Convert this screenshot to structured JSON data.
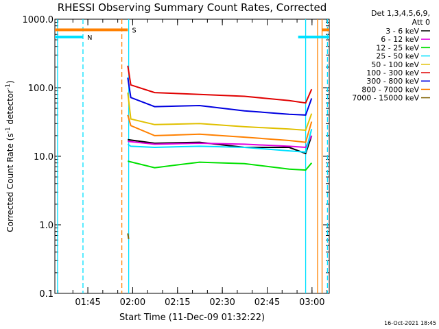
{
  "chart_data": {
    "type": "line",
    "title": "RHESSI Observing Summary Count Rates, Corrected",
    "xlabel": "Start Time (11-Dec-09 01:32:22)",
    "ylabel_main": "Corrected Count Rate (s",
    "ylabel_sup1": "-1",
    "ylabel_mid": " detector",
    "ylabel_sup2": "-1",
    "ylabel_end": ")",
    "yscale": "log",
    "ylim": [
      0.1,
      1000
    ],
    "ytick_values": [
      0.1,
      1,
      10,
      100,
      1000
    ],
    "ytick_labels": [
      "0.1",
      "1.0",
      "10.0",
      "100.0",
      "1000.0"
    ],
    "xlim_minutes": [
      1.6,
      93.4
    ],
    "xtick_minutes": [
      12.63,
      27.63,
      42.63,
      57.63,
      72.63,
      87.63
    ],
    "xtick_labels": [
      "01:45",
      "02:00",
      "02:15",
      "02:30",
      "02:45",
      "03:00"
    ],
    "legend": {
      "header1": "Det 1,3,4,5,6,9,",
      "header2": "Att 0",
      "location": "right of plot"
    },
    "series": [
      {
        "name": "3 - 6 keV",
        "color": "#000000",
        "x": [
          26.0,
          35,
          50,
          65,
          80,
          85.5,
          87.5
        ],
        "y": [
          17.5,
          15.5,
          16,
          13.5,
          13.5,
          11,
          20
        ]
      },
      {
        "name": "6 - 12 keV",
        "color": "#e000e0",
        "x": [
          26.0,
          35,
          50,
          65,
          80,
          85.5,
          87.5
        ],
        "y": [
          16.5,
          15,
          15.5,
          15,
          14,
          13.5,
          20
        ]
      },
      {
        "name": "12 - 25 keV",
        "color": "#00e000",
        "x": [
          26.0,
          35,
          50,
          65,
          80,
          85.5,
          87.5
        ],
        "y": [
          8.5,
          6.8,
          8.2,
          7.8,
          6.5,
          6.3,
          8
        ]
      },
      {
        "name": "25 - 50 keV",
        "color": "#00e0ff",
        "x": [
          26.0,
          27,
          35,
          50,
          65,
          80,
          85.5,
          87.5
        ],
        "y": [
          15,
          14,
          13.5,
          14,
          13.5,
          12,
          11.5,
          25
        ]
      },
      {
        "name": "50 - 100 keV",
        "color": "#e0c000",
        "x": [
          26.0,
          27,
          35,
          50,
          65,
          80,
          85.5,
          87.5
        ],
        "y": [
          85,
          35,
          29,
          30,
          27,
          25,
          24,
          42
        ]
      },
      {
        "name": "100 - 300 keV",
        "color": "#e00000",
        "x": [
          26.0,
          27,
          35,
          50,
          65,
          80,
          85.5,
          87.5
        ],
        "y": [
          210,
          110,
          85,
          80,
          75,
          65,
          60,
          95
        ]
      },
      {
        "name": "300 - 800 keV",
        "color": "#0000e0",
        "x": [
          26.0,
          27,
          35,
          50,
          65,
          80,
          85.5,
          87.5
        ],
        "y": [
          140,
          72,
          53,
          55,
          46,
          41,
          40,
          70
        ]
      },
      {
        "name": "800 - 7000 keV",
        "color": "#ff8000",
        "x": [
          26.0,
          27,
          35,
          50,
          65,
          80,
          85.5,
          87.5
        ],
        "y": [
          40,
          28,
          20,
          21,
          19,
          17,
          16,
          32
        ]
      },
      {
        "name": "7000 - 15000 keV",
        "color": "#806000",
        "x": [
          26.0,
          26.3
        ],
        "y": [
          0.75,
          0.62
        ]
      }
    ],
    "state_bars": [
      {
        "label": "N",
        "color": "#00e0ff",
        "x": [
          [
            1.6,
            11.0
          ],
          [
            83.0,
            93.4
          ]
        ],
        "y": 550
      },
      {
        "label": "S",
        "color": "#ff8000",
        "x": [
          [
            1.6,
            26.0
          ],
          [
            91.0,
            93.4
          ]
        ],
        "y": 700
      }
    ],
    "vertical_markers": [
      {
        "color": "#00e0ff",
        "style": "solid",
        "x": 2.5
      },
      {
        "color": "#00e0ff",
        "style": "dashed",
        "x": 11.0
      },
      {
        "color": "#00e0ff",
        "style": "solid",
        "x": 26.3
      },
      {
        "color": "#ff8000",
        "style": "dashed",
        "x": 24.0
      },
      {
        "color": "#00e0ff",
        "style": "solid",
        "x": 85.5
      },
      {
        "color": "#ff8000",
        "style": "solid",
        "x": 89.5
      },
      {
        "color": "#00e0ff",
        "style": "dashed",
        "x": 92.8
      },
      {
        "color": "#ff8000",
        "style": "solid",
        "x": 91.0
      }
    ]
  },
  "footer": {
    "timestamp": "16-Oct-2021 18:45"
  }
}
